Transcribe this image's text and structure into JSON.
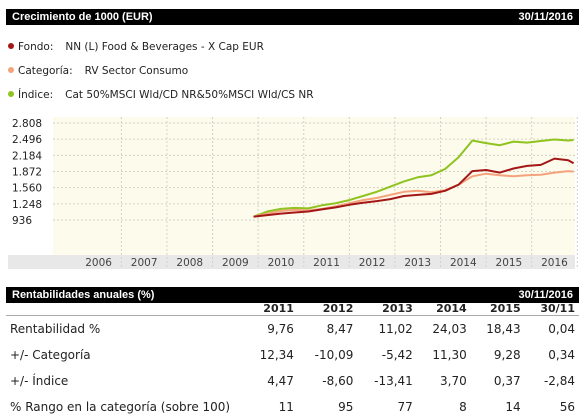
{
  "header": {
    "title": "Crecimiento de 1000 (EUR)",
    "date": "30/11/2016"
  },
  "legend": [
    {
      "label": "Fondo:",
      "value": "NN (L) Food & Beverages - X Cap EUR",
      "color": "#a31717"
    },
    {
      "label": "Categoría:",
      "value": "RV Sector Consumo",
      "color": "#f4a37c"
    },
    {
      "label": "Índice:",
      "value": "Cat 50%MSCI Wld/CD NR&50%MSCI Wld/CS NR",
      "color": "#8fc31f"
    }
  ],
  "chart_data": {
    "type": "line",
    "y_ticks": [
      "2.808",
      "2.496",
      "2.184",
      "1.872",
      "1.560",
      "1.248",
      "936"
    ],
    "x_ticks": [
      "2006",
      "2007",
      "2008",
      "2009",
      "2010",
      "2011",
      "2012",
      "2013",
      "2014",
      "2015",
      "2016"
    ],
    "ylim": [
      936,
      2808
    ],
    "xlim": [
      2005.5,
      2016.95
    ],
    "grid": true,
    "series": [
      {
        "name": "NN (L) Food & Beverages - X Cap EUR",
        "color": "#a31717",
        "x": [
          2009.9,
          2010.2,
          2010.5,
          2010.8,
          2011.1,
          2011.4,
          2011.7,
          2012.0,
          2012.3,
          2012.6,
          2012.9,
          2013.2,
          2013.5,
          2013.8,
          2014.1,
          2014.4,
          2014.7,
          2015.0,
          2015.3,
          2015.6,
          2015.9,
          2016.2,
          2016.5,
          2016.8,
          2016.92
        ],
        "y": [
          1000,
          1030,
          1060,
          1080,
          1100,
          1140,
          1180,
          1230,
          1270,
          1300,
          1340,
          1400,
          1420,
          1440,
          1500,
          1620,
          1880,
          1900,
          1850,
          1930,
          1980,
          2000,
          2120,
          2090,
          2030
        ]
      },
      {
        "name": "RV Sector Consumo",
        "color": "#f4a37c",
        "x": [
          2009.9,
          2010.2,
          2010.5,
          2010.8,
          2011.1,
          2011.4,
          2011.7,
          2012.0,
          2012.3,
          2012.6,
          2012.9,
          2013.2,
          2013.5,
          2013.8,
          2014.1,
          2014.4,
          2014.7,
          2015.0,
          2015.3,
          2015.6,
          2015.9,
          2016.2,
          2016.5,
          2016.8,
          2016.92
        ],
        "y": [
          1000,
          1060,
          1110,
          1130,
          1120,
          1150,
          1200,
          1260,
          1320,
          1360,
          1420,
          1480,
          1500,
          1470,
          1510,
          1620,
          1780,
          1830,
          1800,
          1780,
          1800,
          1810,
          1850,
          1880,
          1870
        ]
      },
      {
        "name": "Cat 50%MSCI Wld/CD NR&50%MSCI Wld/CS NR",
        "color": "#8fc31f",
        "x": [
          2009.9,
          2010.2,
          2010.5,
          2010.8,
          2011.1,
          2011.4,
          2011.7,
          2012.0,
          2012.3,
          2012.6,
          2012.9,
          2013.2,
          2013.5,
          2013.8,
          2014.1,
          2014.4,
          2014.7,
          2015.0,
          2015.3,
          2015.6,
          2015.9,
          2016.2,
          2016.5,
          2016.8,
          2016.92
        ],
        "y": [
          1000,
          1100,
          1150,
          1170,
          1160,
          1220,
          1260,
          1320,
          1400,
          1480,
          1580,
          1680,
          1760,
          1800,
          1920,
          2150,
          2470,
          2420,
          2380,
          2450,
          2430,
          2460,
          2490,
          2470,
          2480
        ]
      }
    ]
  },
  "returns": {
    "title": "Rentabilidades anuales (%)",
    "date": "30/11/2016",
    "columns": [
      "2011",
      "2012",
      "2013",
      "2014",
      "2015",
      "30/11"
    ],
    "rows": [
      {
        "label": "Rentabilidad %",
        "values": [
          "9,76",
          "8,47",
          "11,02",
          "24,03",
          "18,43",
          "0,04"
        ]
      },
      {
        "label": "+/- Categoría",
        "values": [
          "12,34",
          "-10,09",
          "-5,42",
          "11,30",
          "9,28",
          "0,34"
        ]
      },
      {
        "label": "+/- Índice",
        "values": [
          "4,47",
          "-8,60",
          "-13,41",
          "3,70",
          "0,37",
          "-2,84"
        ]
      },
      {
        "label": "% Rango en la categoría (sobre 100)",
        "values": [
          "11",
          "95",
          "77",
          "8",
          "14",
          "56"
        ]
      }
    ]
  }
}
